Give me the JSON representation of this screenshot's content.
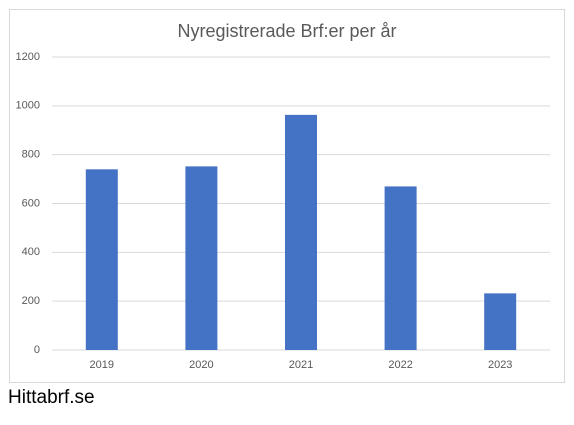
{
  "chart_data": {
    "type": "bar",
    "title": "Nyregistrerade Brf:er per år",
    "categories": [
      "2019",
      "2020",
      "2021",
      "2022",
      "2023"
    ],
    "values": [
      740,
      752,
      963,
      670,
      232
    ],
    "color": "#4472c4",
    "ylim": [
      0,
      1200
    ],
    "yticks": [
      0,
      200,
      400,
      600,
      800,
      1000,
      1200
    ],
    "grid": true
  },
  "footer": "Hittabrf.se"
}
